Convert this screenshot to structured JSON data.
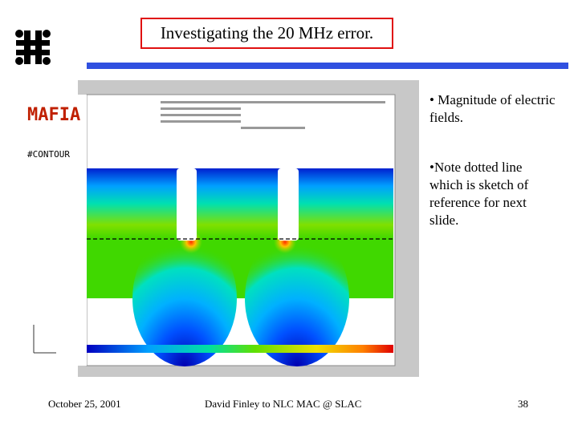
{
  "header": {
    "title": "Investigating the 20 MHz error."
  },
  "figure": {
    "logo_text": "MAFIA",
    "panel_label": "#CONTOUR"
  },
  "bullets": [
    "• Magnitude of electric fields.",
    "•Note dotted line which is sketch of reference for next slide."
  ],
  "footer": {
    "date": "October 25, 2001",
    "author": "David Finley to NLC MAC @ SLAC",
    "page": "38"
  }
}
